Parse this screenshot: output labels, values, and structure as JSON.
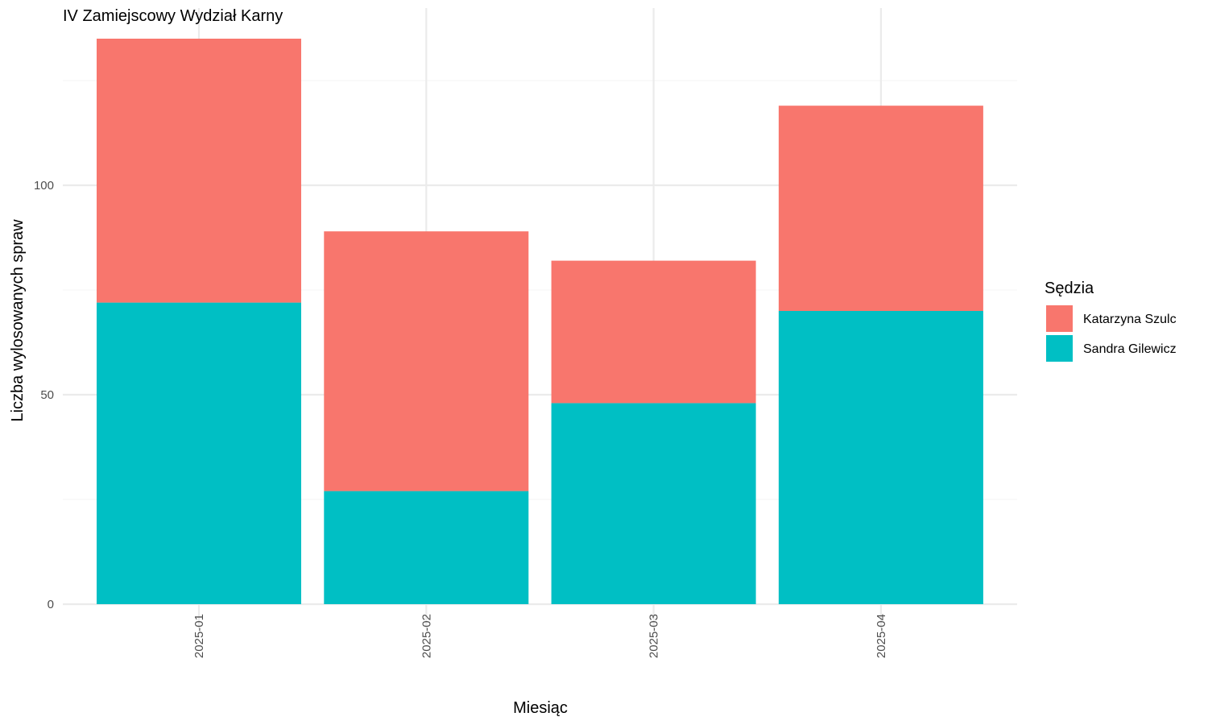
{
  "chart_data": {
    "type": "bar",
    "stacked": true,
    "title": "IV Zamiejscowy Wydział Karny",
    "xlabel": "Miesiąc",
    "ylabel": "Liczba wylosowanych spraw",
    "categories": [
      "2025-01",
      "2025-02",
      "2025-03",
      "2025-04"
    ],
    "series": [
      {
        "name": "Sandra Gilewicz",
        "values": [
          72,
          27,
          48,
          70
        ],
        "color": "#00BFC4"
      },
      {
        "name": "Katarzyna Szulc",
        "values": [
          63,
          62,
          34,
          49
        ],
        "color": "#F8766D"
      }
    ],
    "ylim": [
      0,
      135
    ],
    "yticks": [
      0,
      50,
      100
    ],
    "grid": true,
    "legend": {
      "title": "Sędzia",
      "position": "right",
      "entries": [
        {
          "label": "Katarzyna Szulc",
          "color": "#F8766D"
        },
        {
          "label": "Sandra Gilewicz",
          "color": "#00BFC4"
        }
      ]
    }
  }
}
